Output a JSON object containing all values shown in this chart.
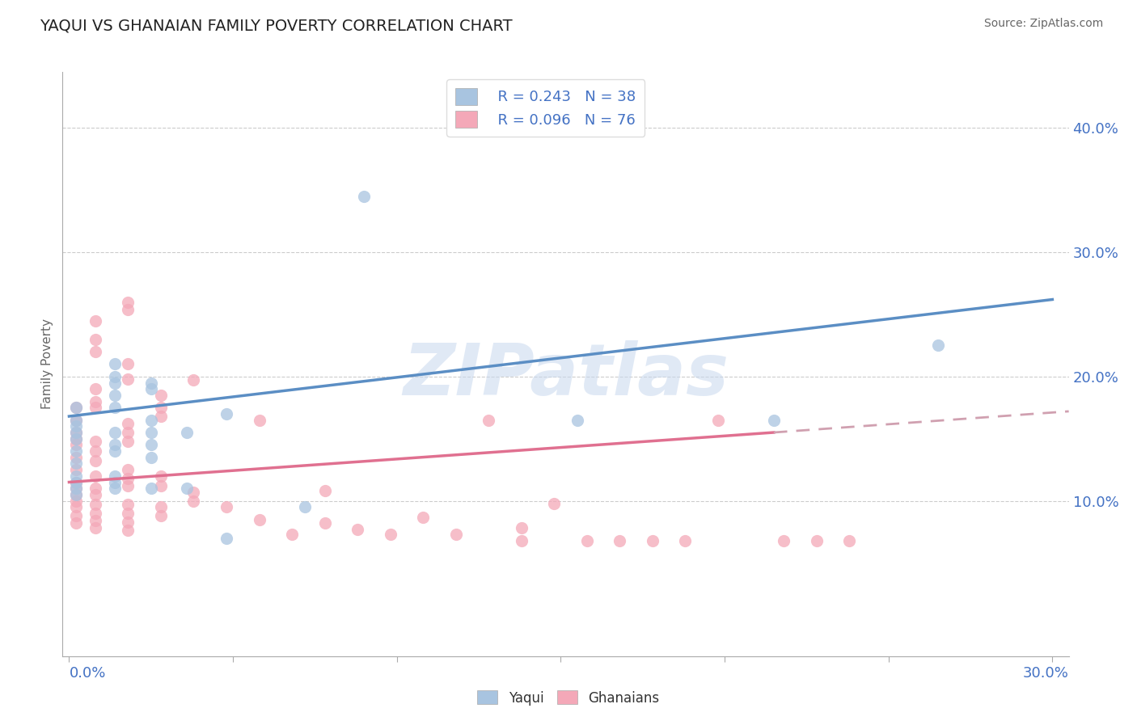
{
  "title": "YAQUI VS GHANAIAN FAMILY POVERTY CORRELATION CHART",
  "source": "Source: ZipAtlas.com",
  "ylabel": "Family Poverty",
  "ytick_labels": [
    "10.0%",
    "20.0%",
    "30.0%",
    "40.0%"
  ],
  "ytick_values": [
    0.1,
    0.2,
    0.3,
    0.4
  ],
  "xlim": [
    -0.002,
    0.305
  ],
  "ylim": [
    -0.025,
    0.445
  ],
  "legend_r1": "R = 0.243   N = 38",
  "legend_r2": "R = 0.096   N = 76",
  "yaqui_color": "#a8c4e0",
  "ghanaian_color": "#f4a8b8",
  "yaqui_line_color": "#5b8ec4",
  "ghanaian_line_color": "#e07090",
  "watermark": "ZIPatlas",
  "background_color": "#ffffff",
  "grid_color": "#cccccc",
  "yaqui_scatter": [
    [
      0.002,
      0.175
    ],
    [
      0.002,
      0.165
    ],
    [
      0.002,
      0.16
    ],
    [
      0.002,
      0.155
    ],
    [
      0.002,
      0.15
    ],
    [
      0.002,
      0.14
    ],
    [
      0.002,
      0.13
    ],
    [
      0.002,
      0.12
    ],
    [
      0.002,
      0.115
    ],
    [
      0.002,
      0.11
    ],
    [
      0.002,
      0.105
    ],
    [
      0.014,
      0.21
    ],
    [
      0.014,
      0.2
    ],
    [
      0.014,
      0.195
    ],
    [
      0.014,
      0.185
    ],
    [
      0.014,
      0.175
    ],
    [
      0.014,
      0.155
    ],
    [
      0.014,
      0.145
    ],
    [
      0.014,
      0.14
    ],
    [
      0.014,
      0.12
    ],
    [
      0.014,
      0.115
    ],
    [
      0.014,
      0.11
    ],
    [
      0.025,
      0.195
    ],
    [
      0.025,
      0.19
    ],
    [
      0.025,
      0.165
    ],
    [
      0.025,
      0.155
    ],
    [
      0.025,
      0.145
    ],
    [
      0.025,
      0.135
    ],
    [
      0.025,
      0.11
    ],
    [
      0.036,
      0.155
    ],
    [
      0.036,
      0.11
    ],
    [
      0.048,
      0.17
    ],
    [
      0.048,
      0.07
    ],
    [
      0.072,
      0.095
    ],
    [
      0.09,
      0.345
    ],
    [
      0.155,
      0.165
    ],
    [
      0.215,
      0.165
    ],
    [
      0.265,
      0.225
    ]
  ],
  "ghanaian_scatter": [
    [
      0.002,
      0.175
    ],
    [
      0.002,
      0.165
    ],
    [
      0.002,
      0.155
    ],
    [
      0.002,
      0.15
    ],
    [
      0.002,
      0.145
    ],
    [
      0.002,
      0.135
    ],
    [
      0.002,
      0.125
    ],
    [
      0.002,
      0.115
    ],
    [
      0.002,
      0.11
    ],
    [
      0.002,
      0.105
    ],
    [
      0.002,
      0.1
    ],
    [
      0.002,
      0.095
    ],
    [
      0.002,
      0.088
    ],
    [
      0.002,
      0.082
    ],
    [
      0.008,
      0.245
    ],
    [
      0.008,
      0.23
    ],
    [
      0.008,
      0.22
    ],
    [
      0.008,
      0.19
    ],
    [
      0.008,
      0.18
    ],
    [
      0.008,
      0.175
    ],
    [
      0.008,
      0.148
    ],
    [
      0.008,
      0.14
    ],
    [
      0.008,
      0.132
    ],
    [
      0.008,
      0.12
    ],
    [
      0.008,
      0.11
    ],
    [
      0.008,
      0.105
    ],
    [
      0.008,
      0.097
    ],
    [
      0.008,
      0.09
    ],
    [
      0.008,
      0.084
    ],
    [
      0.008,
      0.078
    ],
    [
      0.018,
      0.26
    ],
    [
      0.018,
      0.254
    ],
    [
      0.018,
      0.21
    ],
    [
      0.018,
      0.198
    ],
    [
      0.018,
      0.162
    ],
    [
      0.018,
      0.155
    ],
    [
      0.018,
      0.148
    ],
    [
      0.018,
      0.125
    ],
    [
      0.018,
      0.118
    ],
    [
      0.018,
      0.112
    ],
    [
      0.018,
      0.097
    ],
    [
      0.018,
      0.09
    ],
    [
      0.018,
      0.083
    ],
    [
      0.018,
      0.076
    ],
    [
      0.028,
      0.185
    ],
    [
      0.028,
      0.175
    ],
    [
      0.028,
      0.168
    ],
    [
      0.028,
      0.12
    ],
    [
      0.028,
      0.112
    ],
    [
      0.028,
      0.095
    ],
    [
      0.028,
      0.088
    ],
    [
      0.038,
      0.197
    ],
    [
      0.038,
      0.107
    ],
    [
      0.038,
      0.1
    ],
    [
      0.048,
      0.095
    ],
    [
      0.058,
      0.165
    ],
    [
      0.058,
      0.085
    ],
    [
      0.068,
      0.073
    ],
    [
      0.078,
      0.108
    ],
    [
      0.078,
      0.082
    ],
    [
      0.088,
      0.077
    ],
    [
      0.098,
      0.073
    ],
    [
      0.108,
      0.087
    ],
    [
      0.118,
      0.073
    ],
    [
      0.128,
      0.165
    ],
    [
      0.138,
      0.078
    ],
    [
      0.138,
      0.068
    ],
    [
      0.148,
      0.098
    ],
    [
      0.158,
      0.068
    ],
    [
      0.168,
      0.068
    ],
    [
      0.178,
      0.068
    ],
    [
      0.188,
      0.068
    ],
    [
      0.198,
      0.165
    ],
    [
      0.218,
      0.068
    ],
    [
      0.228,
      0.068
    ],
    [
      0.238,
      0.068
    ]
  ],
  "yaqui_trendline": [
    [
      0.0,
      0.168
    ],
    [
      0.3,
      0.262
    ]
  ],
  "ghanaian_trendline_solid": [
    [
      0.0,
      0.115
    ],
    [
      0.215,
      0.155
    ]
  ],
  "ghanaian_trendline_dash": [
    [
      0.215,
      0.155
    ],
    [
      0.305,
      0.172
    ]
  ]
}
